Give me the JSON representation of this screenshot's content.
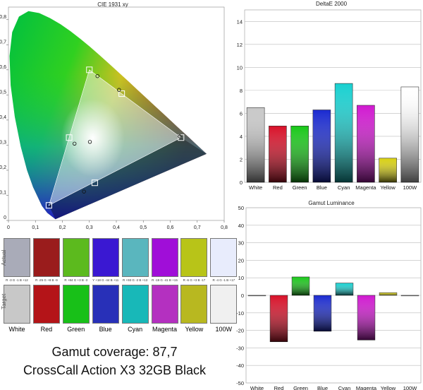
{
  "chart_data": [
    {
      "type": "scatter",
      "title": "CIE 1931 xy",
      "xlim": [
        0,
        0.8
      ],
      "ylim": [
        0,
        0.85
      ],
      "x_ticks": [
        "0",
        "0,1",
        "0,2",
        "0,3",
        "0,4",
        "0,5",
        "0,6",
        "0,7",
        "0,8"
      ],
      "y_ticks": [
        "0",
        "0,1",
        "0,2",
        "0,3",
        "0,4",
        "0,5",
        "0,6",
        "0,7",
        "0,8"
      ],
      "reference_gamut": {
        "R": [
          0.64,
          0.33
        ],
        "G": [
          0.3,
          0.6
        ],
        "B": [
          0.15,
          0.06
        ],
        "W": [
          0.3127,
          0.329
        ]
      },
      "targets": [
        {
          "name": "Red",
          "x": 0.64,
          "y": 0.33
        },
        {
          "name": "Green",
          "x": 0.3,
          "y": 0.6
        },
        {
          "name": "Blue",
          "x": 0.15,
          "y": 0.06
        },
        {
          "name": "Cyan",
          "x": 0.225,
          "y": 0.33
        },
        {
          "name": "Magenta",
          "x": 0.32,
          "y": 0.15
        },
        {
          "name": "Yellow",
          "x": 0.42,
          "y": 0.505
        }
      ],
      "measured": [
        {
          "name": "White",
          "x": 0.302,
          "y": 0.313
        },
        {
          "name": "Cyan",
          "x": 0.245,
          "y": 0.306
        },
        {
          "name": "Green",
          "x": 0.33,
          "y": 0.575
        },
        {
          "name": "Yellow",
          "x": 0.41,
          "y": 0.52
        },
        {
          "name": "Blue",
          "x": 0.15,
          "y": 0.06
        },
        {
          "name": "Magenta",
          "x": 0.28,
          "y": 0.115
        },
        {
          "name": "Red",
          "x": 0.635,
          "y": 0.335
        }
      ]
    },
    {
      "type": "bar",
      "title": "DeltaE 2000",
      "categories": [
        "White",
        "Red",
        "Green",
        "Blue",
        "Cyan",
        "Magenta",
        "Yellow",
        "100W"
      ],
      "values": [
        6.5,
        4.9,
        4.9,
        6.3,
        8.6,
        6.7,
        2.1,
        8.3
      ],
      "ylim": [
        0,
        15
      ],
      "y_ticks": [
        0,
        2,
        4,
        6,
        8,
        10,
        12,
        14
      ],
      "colors": [
        "#c8c8c8",
        "#d81028",
        "#18c818",
        "#1a2ad0",
        "#18d0d0",
        "#d018d0",
        "#d8d010",
        "#ffffff"
      ]
    },
    {
      "type": "bar",
      "title": "Gamut Luminance",
      "categories": [
        "White",
        "Red",
        "Green",
        "Blue",
        "Cyan",
        "Magenta",
        "Yellow",
        "100W"
      ],
      "values": [
        0,
        -26.5,
        10.5,
        -20.5,
        7,
        -25.5,
        1.5,
        0
      ],
      "ylim": [
        -50,
        50
      ],
      "y_ticks": [
        50,
        40,
        30,
        20,
        10,
        0,
        -10,
        -20,
        -30,
        -40,
        -50
      ],
      "colors": [
        "#c8c8c8",
        "#d81028",
        "#18c818",
        "#1a2ad0",
        "#18d0d0",
        "#d018d0",
        "#d8d010",
        "#ffffff"
      ]
    }
  ],
  "swatches": {
    "row_actual_label": "Actual",
    "row_target_label": "Target",
    "items": [
      {
        "name": "White",
        "actual": "#a9abb8",
        "target": "#c8c8c8",
        "code": "R -3 G -1 B +12"
      },
      {
        "name": "Red",
        "actual": "#9a1c1c",
        "target": "#b41418",
        "code": "R -25 G +8 B -9"
      },
      {
        "name": "Green",
        "actual": "#5cba1e",
        "target": "#18c018",
        "code": "R +84 G +3 B -3"
      },
      {
        "name": "Blue",
        "actual": "#3a18d2",
        "target": "#2830b8",
        "code": "Y +18 G -44 B +11"
      },
      {
        "name": "Cyan",
        "actual": "#5ab6be",
        "target": "#18b8b8",
        "code": "R +93 G -2 B +13"
      },
      {
        "name": "Magenta",
        "actual": "#a00ed8",
        "target": "#b430c0",
        "code": "R -19 G -41 B +15"
      },
      {
        "name": "Yellow",
        "actual": "#b8c418",
        "target": "#b8b820",
        "code": "R -6 G +3 B -17"
      },
      {
        "name": "100W",
        "actual": "#e8ecfc",
        "target": "#f0f0f0",
        "code": "R -4 G -1 B +17"
      }
    ]
  },
  "summary": {
    "gamut_coverage": "Gamut coverage: 87,7",
    "device": "CrossCall Action X3 32GB Black"
  }
}
